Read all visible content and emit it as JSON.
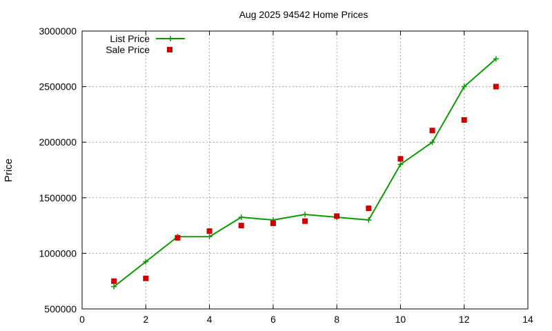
{
  "chart_data": {
    "type": "line",
    "title": "Aug 2025 94542 Home Prices",
    "xlabel": "",
    "ylabel": "Price",
    "xlim": [
      0,
      14
    ],
    "ylim": [
      500000,
      3000000
    ],
    "xticks": [
      0,
      2,
      4,
      6,
      8,
      10,
      12,
      14
    ],
    "yticks": [
      500000,
      1000000,
      1500000,
      2000000,
      2500000,
      3000000
    ],
    "grid": true,
    "legend_position": "top-left",
    "series": [
      {
        "name": "List Price",
        "style": "line-plus",
        "color": "#0a9900",
        "x": [
          1,
          2,
          3,
          4,
          5,
          6,
          7,
          8,
          9,
          10,
          11,
          12,
          13
        ],
        "y": [
          700000,
          925000,
          1150000,
          1150000,
          1325000,
          1300000,
          1350000,
          1325000,
          1300000,
          1800000,
          2000000,
          2500000,
          2750000
        ]
      },
      {
        "name": "Sale Price",
        "style": "points",
        "color": "#cc0000",
        "x": [
          1,
          2,
          3,
          4,
          5,
          6,
          7,
          8,
          9,
          10,
          11,
          12,
          13
        ],
        "y": [
          750000,
          775000,
          1140000,
          1200000,
          1250000,
          1270000,
          1290000,
          1335000,
          1405000,
          1850000,
          2105000,
          2200000,
          2500000
        ]
      }
    ]
  }
}
